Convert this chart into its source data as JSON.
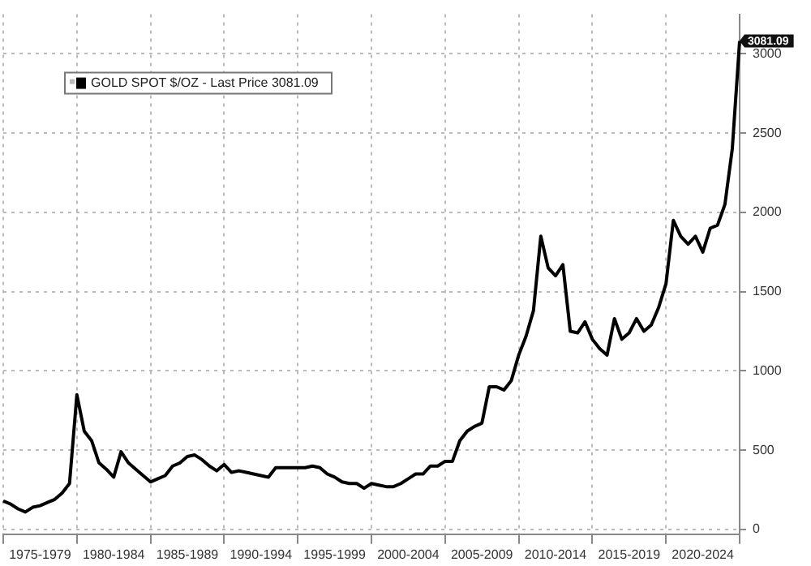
{
  "chart_data": {
    "type": "line",
    "legend": "top left",
    "grid": true,
    "marker": "none",
    "line_style": "solid",
    "categories": [
      null,
      null,
      null,
      null,
      null,
      "1975-1979",
      null,
      null,
      null,
      null,
      null,
      null,
      null,
      null,
      null,
      "1980-1984",
      null,
      null,
      null,
      null,
      null,
      null,
      null,
      null,
      null,
      "1985-1989",
      null,
      null,
      null,
      null,
      null,
      null,
      null,
      null,
      null,
      "1990-1994",
      null,
      null,
      null,
      null,
      null,
      null,
      null,
      null,
      null,
      "1995-1999",
      null,
      null,
      null,
      null,
      null,
      null,
      null,
      null,
      null,
      "2000-2004",
      null,
      null,
      null,
      null,
      null,
      null,
      null,
      null,
      null,
      "2005-2009",
      null,
      null,
      null,
      null,
      null,
      null,
      null,
      null,
      null,
      "2010-2014",
      null,
      null,
      null,
      null,
      null,
      null,
      null,
      null,
      null,
      "2015-2019",
      null,
      null,
      null,
      null,
      null,
      null,
      null,
      null,
      null,
      "2020-2024",
      null,
      null,
      null,
      null,
      null
    ],
    "series": [
      {
        "name": "GOLD SPOT $/OZ - Last Price 3081.09",
        "color": "#000000",
        "values": [
          180,
          160,
          130,
          110,
          140,
          150,
          170,
          190,
          230,
          290,
          850,
          620,
          560,
          420,
          380,
          330,
          490,
          420,
          380,
          340,
          300,
          320,
          340,
          400,
          420,
          460,
          470,
          440,
          400,
          370,
          410,
          360,
          370,
          360,
          350,
          340,
          330,
          390,
          390,
          390,
          390,
          390,
          400,
          390,
          350,
          330,
          300,
          290,
          290,
          260,
          290,
          280,
          270,
          270,
          290,
          320,
          350,
          350,
          400,
          400,
          430,
          430,
          560,
          620,
          650,
          670,
          900,
          900,
          880,
          940,
          1100,
          1220,
          1380,
          1850,
          1650,
          1600,
          1670,
          1250,
          1240,
          1310,
          1200,
          1140,
          1100,
          1330,
          1200,
          1240,
          1330,
          1250,
          1290,
          1400,
          1550,
          1950,
          1850,
          1800,
          1850,
          1750,
          1900,
          1920,
          2050,
          2400,
          3081.09
        ]
      }
    ],
    "ylim": [
      -30,
      3250
    ],
    "yticks": [
      0,
      500,
      1000,
      1500,
      2000,
      2500,
      3000
    ],
    "annotations": [
      "3081.09"
    ]
  }
}
